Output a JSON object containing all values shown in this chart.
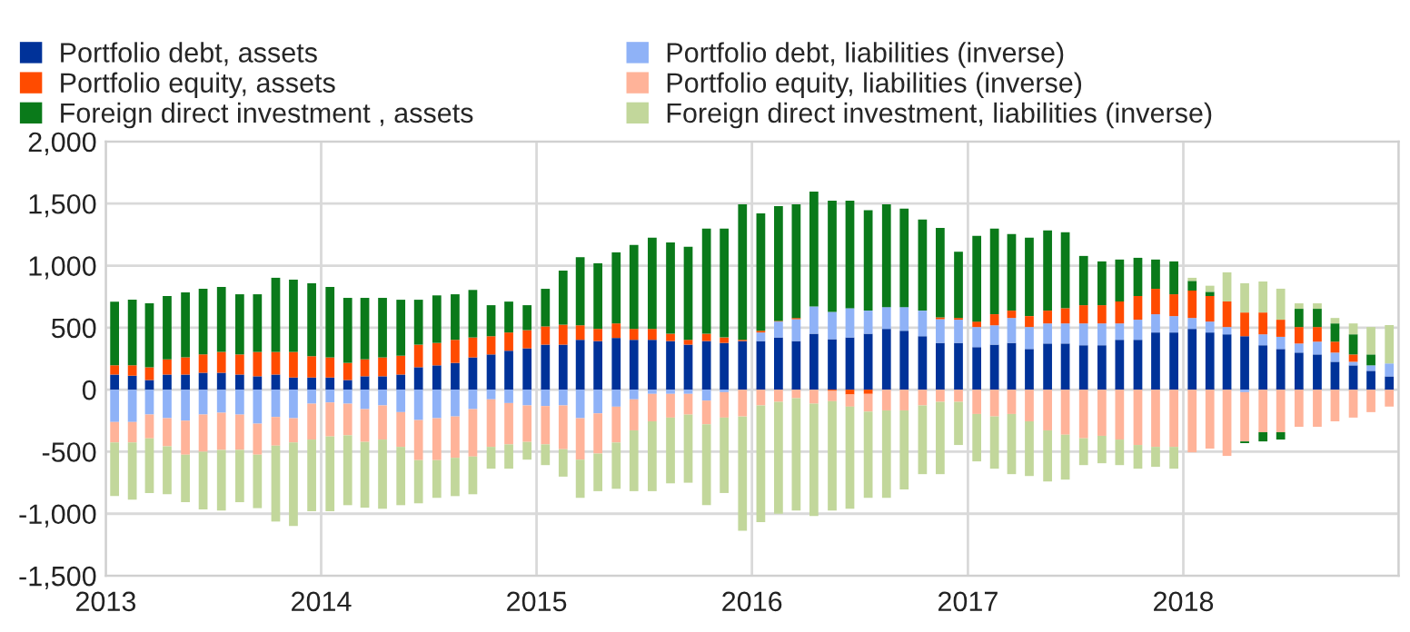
{
  "chart_data": {
    "type": "bar",
    "stacked": true,
    "x": [
      "2013-01-16",
      "2013-02-15",
      "2013-03-16",
      "2013-04-15",
      "2013-05-16",
      "2013-06-15",
      "2013-07-16",
      "2013-08-16",
      "2013-09-15",
      "2013-10-16",
      "2013-11-15",
      "2013-12-16",
      "2014-01-16",
      "2014-02-15",
      "2014-03-16",
      "2014-04-15",
      "2014-05-16",
      "2014-06-15",
      "2014-07-16",
      "2014-08-16",
      "2014-09-15",
      "2014-10-16",
      "2014-11-15",
      "2014-12-16",
      "2015-01-16",
      "2015-02-15",
      "2015-03-16",
      "2015-04-15",
      "2015-05-16",
      "2015-06-15",
      "2015-07-16",
      "2015-08-16",
      "2015-09-15",
      "2015-10-16",
      "2015-11-15",
      "2015-12-16",
      "2016-01-16",
      "2016-02-15",
      "2016-03-16",
      "2016-04-15",
      "2016-05-16",
      "2016-06-15",
      "2016-07-16",
      "2016-08-16",
      "2016-09-15",
      "2016-10-16",
      "2016-11-15",
      "2016-12-16",
      "2017-01-16",
      "2017-02-15",
      "2017-03-16",
      "2017-04-15",
      "2017-05-16",
      "2017-06-15",
      "2017-07-16",
      "2017-08-16",
      "2017-09-15",
      "2017-10-16",
      "2017-11-15",
      "2017-12-16",
      "2018-01-16",
      "2018-02-15",
      "2018-03-16",
      "2018-04-15",
      "2018-05-16",
      "2018-06-15",
      "2018-07-16",
      "2018-08-16",
      "2018-09-15",
      "2018-10-16",
      "2018-11-15",
      "2018-12-16"
    ],
    "series": [
      {
        "name": "Portfolio debt, assets",
        "color": "#003299",
        "values": [
          122,
          113,
          78,
          122,
          122,
          137,
          137,
          122,
          108,
          122,
          98,
          98,
          98,
          78,
          108,
          108,
          122,
          181,
          196,
          216,
          260,
          284,
          314,
          333,
          363,
          363,
          402,
          392,
          417,
          402,
          402,
          392,
          363,
          392,
          377,
          392,
          392,
          421,
          392,
          451,
          407,
          421,
          451,
          490,
          475,
          431,
          377,
          377,
          343,
          363,
          377,
          328,
          372,
          372,
          358,
          358,
          402,
          402,
          461,
          461,
          490,
          461,
          446,
          431,
          358,
          328,
          299,
          284,
          225,
          196,
          152,
          108
        ]
      },
      {
        "name": "Portfolio debt, liabilities (inverse)",
        "color": "#8fb2f7",
        "values": [
          -260,
          -260,
          -201,
          -230,
          -250,
          -201,
          -186,
          -201,
          -274,
          -220,
          -230,
          -113,
          -103,
          -113,
          -157,
          -127,
          -181,
          -245,
          -230,
          -216,
          -157,
          -78,
          -108,
          -127,
          -132,
          -127,
          -230,
          -191,
          -137,
          -78,
          -34,
          -34,
          -34,
          -88,
          -20,
          0,
          69,
          128,
          176,
          220,
          220,
          236,
          186,
          176,
          191,
          206,
          191,
          187,
          162,
          156,
          201,
          177,
          162,
          162,
          176,
          176,
          132,
          162,
          147,
          132,
          88,
          88,
          59,
          -20,
          88,
          98,
          73,
          103,
          74,
          29,
          44,
          103
        ]
      },
      {
        "name": "Portfolio equity, assets",
        "color": "#ff4b00",
        "values": [
          74,
          83,
          103,
          123,
          138,
          147,
          167,
          162,
          196,
          182,
          206,
          172,
          162,
          138,
          137,
          152,
          152,
          182,
          181,
          186,
          161,
          147,
          147,
          147,
          147,
          161,
          117,
          98,
          117,
          88,
          88,
          59,
          39,
          59,
          44,
          10,
          14,
          5,
          10,
          0,
          -10,
          -39,
          -34,
          0,
          0,
          0,
          15,
          14,
          44,
          89,
          59,
          88,
          103,
          123,
          147,
          147,
          177,
          191,
          205,
          176,
          221,
          206,
          206,
          191,
          176,
          138,
          133,
          118,
          88,
          59,
          0,
          0
        ]
      },
      {
        "name": "Portfolio equity, liabilities (inverse)",
        "color": "#ffb399",
        "values": [
          -166,
          -166,
          -191,
          -226,
          -274,
          -299,
          -299,
          -284,
          -250,
          -231,
          -196,
          -289,
          -274,
          -255,
          -264,
          -275,
          -280,
          -323,
          -338,
          -333,
          -382,
          -383,
          -333,
          -294,
          -309,
          -353,
          -334,
          -324,
          -289,
          -250,
          -221,
          -191,
          -167,
          -191,
          -205,
          -216,
          -127,
          -98,
          -69,
          -113,
          -83,
          -98,
          -142,
          -167,
          -167,
          -127,
          -98,
          -98,
          -196,
          -216,
          -196,
          -255,
          -328,
          -363,
          -392,
          -372,
          -402,
          -446,
          -461,
          -461,
          -505,
          -475,
          -534,
          -397,
          -343,
          -343,
          -299,
          -299,
          -255,
          -225,
          -181,
          -137
        ]
      },
      {
        "name": "Foreign direct investment , assets",
        "color": "#0a7a1a",
        "values": [
          514,
          529,
          515,
          510,
          524,
          529,
          524,
          485,
          465,
          598,
          583,
          588,
          568,
          524,
          495,
          480,
          451,
          362,
          383,
          367,
          383,
          250,
          249,
          201,
          303,
          436,
          549,
          529,
          573,
          676,
          735,
          735,
          750,
          848,
          878,
          1093,
          946,
          926,
          917,
          926,
          897,
          867,
          809,
          829,
          794,
          735,
          720,
          534,
          691,
          691,
          617,
          632,
          647,
          612,
          397,
          353,
          338,
          308,
          236,
          265,
          78,
          34,
          0,
          -14,
          -74,
          -59,
          147,
          147,
          147,
          162,
          88,
          0
        ]
      },
      {
        "name": "Foreign direct investment, liabilities (inverse)",
        "color": "#c2d79b",
        "values": [
          -431,
          -461,
          -441,
          -387,
          -383,
          -465,
          -490,
          -422,
          -431,
          -612,
          -672,
          -578,
          -603,
          -563,
          -530,
          -558,
          -470,
          -348,
          -304,
          -309,
          -304,
          -176,
          -196,
          -143,
          -167,
          -221,
          -308,
          -303,
          -373,
          -490,
          -563,
          -530,
          -549,
          -652,
          -608,
          -921,
          -941,
          -902,
          -906,
          -906,
          -882,
          -823,
          -696,
          -705,
          -637,
          -554,
          -583,
          -348,
          -382,
          -421,
          -485,
          -441,
          -412,
          -362,
          -216,
          -221,
          -206,
          -191,
          -161,
          -176,
          25,
          49,
          235,
          236,
          250,
          250,
          44,
          44,
          44,
          88,
          221,
          309
        ]
      }
    ],
    "xlim": [
      "2013-01-01",
      "2019-01-01"
    ],
    "xticks": [
      {
        "value": "2013-01-01",
        "label": "2013"
      },
      {
        "value": "2014-01-01",
        "label": "2014"
      },
      {
        "value": "2015-01-01",
        "label": "2015"
      },
      {
        "value": "2016-01-01",
        "label": "2016"
      },
      {
        "value": "2017-01-01",
        "label": "2017"
      },
      {
        "value": "2018-01-01",
        "label": "2018"
      },
      {
        "value": "2019-01-01",
        "label": null
      }
    ],
    "ylim": [
      -1500,
      2000
    ],
    "yticks": [
      {
        "value": -1500,
        "label": "-1,500"
      },
      {
        "value": -1000,
        "label": "-1,000"
      },
      {
        "value": -500,
        "label": "-500"
      },
      {
        "value": 0,
        "label": "0"
      },
      {
        "value": 500,
        "label": "500"
      },
      {
        "value": 1000,
        "label": "1,000"
      },
      {
        "value": 1500,
        "label": "1,500"
      },
      {
        "value": 2000,
        "label": "2,000"
      }
    ],
    "grid": true,
    "legend": "top"
  }
}
